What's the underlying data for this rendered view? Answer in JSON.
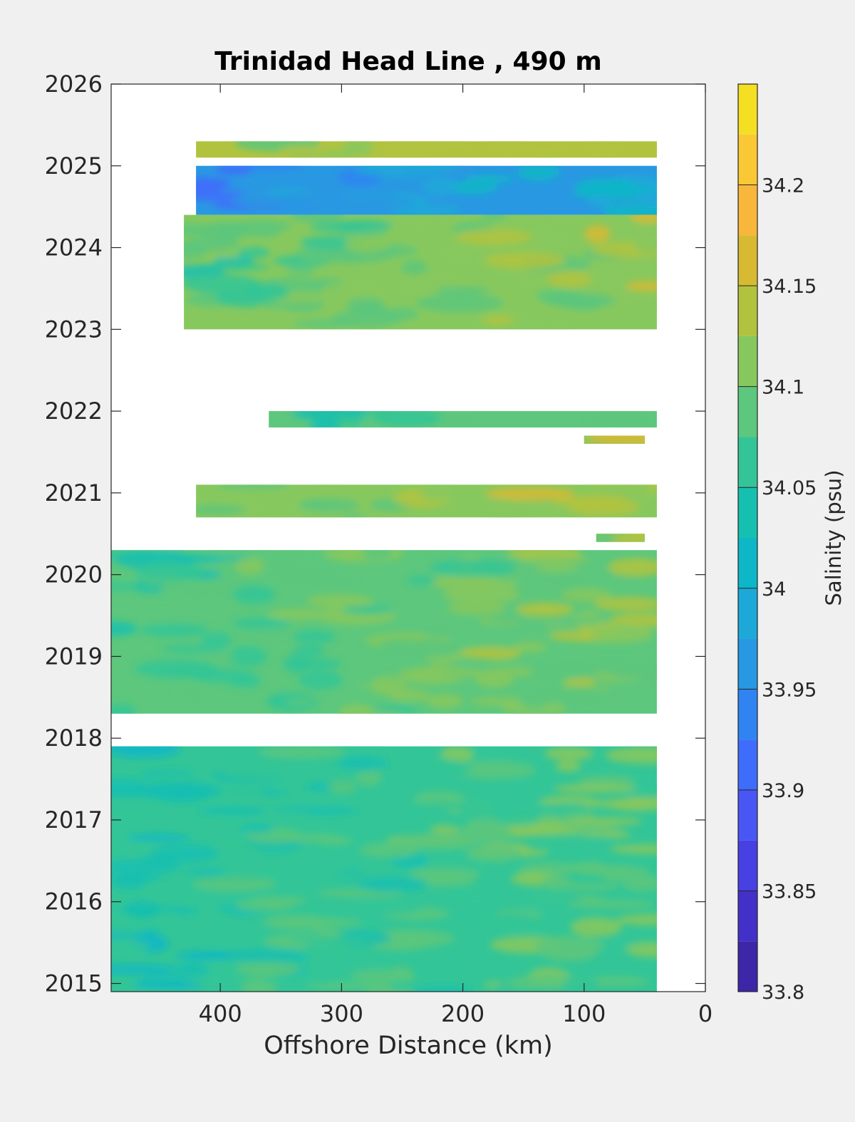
{
  "chart_data": {
    "type": "heatmap",
    "title": "Trinidad Head Line , 490 m",
    "xlabel": "Offshore Distance (km)",
    "ylabel": "",
    "x_reversed": true,
    "xlim": [
      0,
      490
    ],
    "ylim": [
      2014.9,
      2026
    ],
    "xticks": [
      400,
      300,
      200,
      100,
      0
    ],
    "yticks": [
      2015,
      2016,
      2017,
      2018,
      2019,
      2020,
      2021,
      2022,
      2023,
      2024,
      2025,
      2026
    ],
    "colorbar": {
      "label": "Salinity (psu)",
      "range": [
        33.8,
        34.25
      ],
      "ticks": [
        33.8,
        33.85,
        33.9,
        33.95,
        34,
        34.05,
        34.1,
        34.15,
        34.2
      ],
      "tick_labels": [
        "33.8",
        "33.85",
        "33.9",
        "33.95",
        "34",
        "34.05",
        "34.1",
        "34.15",
        "34.2"
      ],
      "levels": [
        33.8,
        33.825,
        33.85,
        33.875,
        33.9,
        33.925,
        33.95,
        33.975,
        34.0,
        34.025,
        34.05,
        34.075,
        34.1,
        34.125,
        34.15,
        34.175,
        34.2,
        34.225,
        34.25
      ],
      "colors": [
        "#3d26a8",
        "#4330c9",
        "#4740e3",
        "#4856f4",
        "#3f6dfb",
        "#2f84f2",
        "#2998e2",
        "#1ca9d8",
        "#0db7c7",
        "#16c0b0",
        "#33c597",
        "#5cc77d",
        "#87c85e",
        "#b1c33e",
        "#d7ba31",
        "#f8b73b",
        "#fbc835",
        "#f4df23",
        "#f9ef16"
      ]
    },
    "series": [
      {
        "y_start": 2025.1,
        "y_end": 2025.3,
        "x_min": 40,
        "x_max": 420,
        "salinity_mean": 34.13
      },
      {
        "y_start": 2024.4,
        "y_end": 2025.0,
        "x_min": 40,
        "x_max": 420,
        "salinity_mean": 33.97
      },
      {
        "y_start": 2023.0,
        "y_end": 2024.4,
        "x_min": 40,
        "x_max": 430,
        "salinity_mean": 34.1
      },
      {
        "y_start": 2021.8,
        "y_end": 2022.0,
        "x_min": 40,
        "x_max": 360,
        "salinity_mean": 34.08
      },
      {
        "y_start": 2021.6,
        "y_end": 2021.7,
        "x_min": 50,
        "x_max": 100,
        "salinity_mean": 34.11
      },
      {
        "y_start": 2020.7,
        "y_end": 2021.1,
        "x_min": 40,
        "x_max": 420,
        "salinity_mean": 34.12
      },
      {
        "y_start": 2020.4,
        "y_end": 2020.5,
        "x_min": 50,
        "x_max": 90,
        "salinity_mean": 34.12
      },
      {
        "y_start": 2018.3,
        "y_end": 2020.3,
        "x_min": 40,
        "x_max": 490,
        "salinity_mean": 34.09
      },
      {
        "y_start": 2014.9,
        "y_end": 2017.9,
        "x_min": 40,
        "x_max": 490,
        "salinity_mean": 34.07
      }
    ]
  }
}
